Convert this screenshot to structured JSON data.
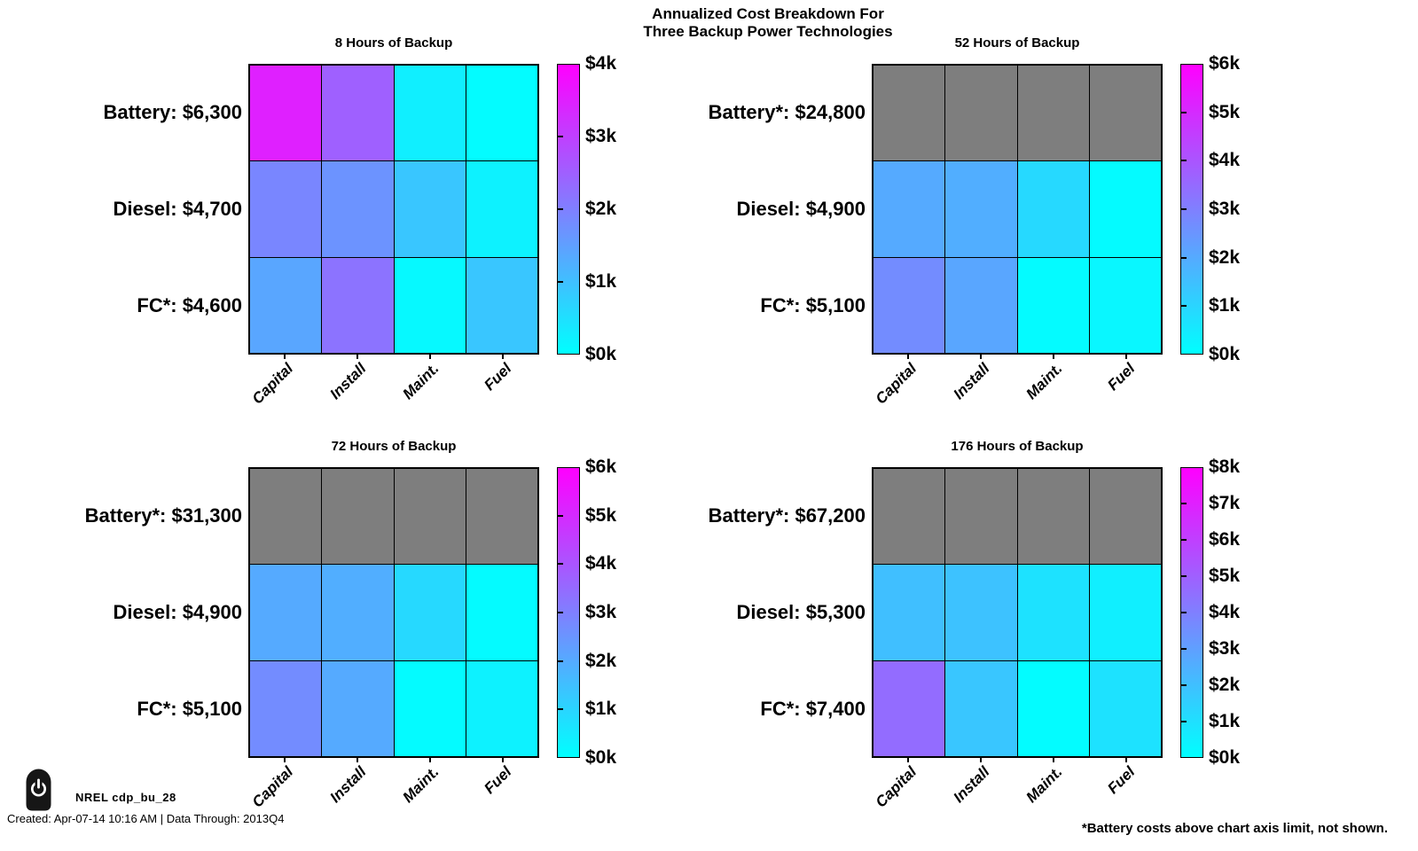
{
  "page": {
    "title_line1": "Annualized Cost Breakdown For",
    "title_line2": "Three Backup Power Technologies",
    "footnote": "*Battery costs above chart axis limit, not shown.",
    "footer": {
      "icon": "power-icon",
      "label": "NREL cdp_bu_28",
      "created": "Created: Apr-07-14 10:16 AM | Data Through: 2013Q4"
    },
    "colors": {
      "background": "#FFFFFF",
      "text": "#000000",
      "colormap_low": "#00FFFF",
      "colormap_high": "#FF00FF",
      "above_limit": "#7E7E7E",
      "gridline": "#000000"
    }
  },
  "chart_data": [
    {
      "id": "8h",
      "type": "heatmap",
      "title": "8 Hours of Backup",
      "columns": [
        "Capital",
        "Install",
        "Maint.",
        "Fuel"
      ],
      "rows": [
        {
          "label": "Battery: $6,300",
          "technology": "Battery",
          "total_usd": 6300,
          "above_limit": false,
          "values_usd": [
            3500,
            2500,
            250,
            50
          ]
        },
        {
          "label": "Diesel: $4,700",
          "technology": "Diesel",
          "total_usd": 4700,
          "above_limit": false,
          "values_usd": [
            1900,
            1700,
            900,
            200
          ]
        },
        {
          "label": "FC*: $4,600",
          "technology": "Fuel Cell",
          "total_usd": 4600,
          "above_limit": false,
          "values_usd": [
            1400,
            2200,
            100,
            900
          ]
        }
      ],
      "colorbar": {
        "min_usd": 0,
        "max_usd": 4000,
        "tick_labels": [
          "$4k",
          "$3k",
          "$2k",
          "$1k",
          "$0k"
        ]
      }
    },
    {
      "id": "52h",
      "type": "heatmap",
      "title": "52 Hours of Backup",
      "columns": [
        "Capital",
        "Install",
        "Maint.",
        "Fuel"
      ],
      "rows": [
        {
          "label": "Battery*: $24,800",
          "technology": "Battery",
          "total_usd": 24800,
          "above_limit": true,
          "values_usd": null
        },
        {
          "label": "Diesel: $4,900",
          "technology": "Diesel",
          "total_usd": 4900,
          "above_limit": false,
          "values_usd": [
            2000,
            1900,
            900,
            100
          ]
        },
        {
          "label": "FC*: $5,100",
          "technology": "Fuel Cell",
          "total_usd": 5100,
          "above_limit": false,
          "values_usd": [
            2700,
            2100,
            100,
            200
          ]
        }
      ],
      "colorbar": {
        "min_usd": 0,
        "max_usd": 6000,
        "tick_labels": [
          "$6k",
          "$5k",
          "$4k",
          "$3k",
          "$2k",
          "$1k",
          "$0k"
        ]
      }
    },
    {
      "id": "72h",
      "type": "heatmap",
      "title": "72 Hours of Backup",
      "columns": [
        "Capital",
        "Install",
        "Maint.",
        "Fuel"
      ],
      "rows": [
        {
          "label": "Battery*: $31,300",
          "technology": "Battery",
          "total_usd": 31300,
          "above_limit": true,
          "values_usd": null
        },
        {
          "label": "Diesel: $4,900",
          "technology": "Diesel",
          "total_usd": 4900,
          "above_limit": false,
          "values_usd": [
            2000,
            1900,
            900,
            100
          ]
        },
        {
          "label": "FC*: $5,100",
          "technology": "Fuel Cell",
          "total_usd": 5100,
          "above_limit": false,
          "values_usd": [
            2700,
            2000,
            100,
            300
          ]
        }
      ],
      "colorbar": {
        "min_usd": 0,
        "max_usd": 6000,
        "tick_labels": [
          "$6k",
          "$5k",
          "$4k",
          "$3k",
          "$2k",
          "$1k",
          "$0k"
        ]
      }
    },
    {
      "id": "176h",
      "type": "heatmap",
      "title": "176 Hours of Backup",
      "columns": [
        "Capital",
        "Install",
        "Maint.",
        "Fuel"
      ],
      "rows": [
        {
          "label": "Battery*: $67,200",
          "technology": "Battery",
          "total_usd": 67200,
          "above_limit": true,
          "values_usd": null
        },
        {
          "label": "Diesel: $5,300",
          "technology": "Diesel",
          "total_usd": 5300,
          "above_limit": false,
          "values_usd": [
            2000,
            1900,
            900,
            500
          ]
        },
        {
          "label": "FC*: $7,400",
          "technology": "Fuel Cell",
          "total_usd": 7400,
          "above_limit": false,
          "values_usd": [
            4600,
            1800,
            100,
            900
          ]
        }
      ],
      "colorbar": {
        "min_usd": 0,
        "max_usd": 8000,
        "tick_labels": [
          "$8k",
          "$7k",
          "$6k",
          "$5k",
          "$4k",
          "$3k",
          "$2k",
          "$1k",
          "$0k"
        ]
      }
    }
  ]
}
